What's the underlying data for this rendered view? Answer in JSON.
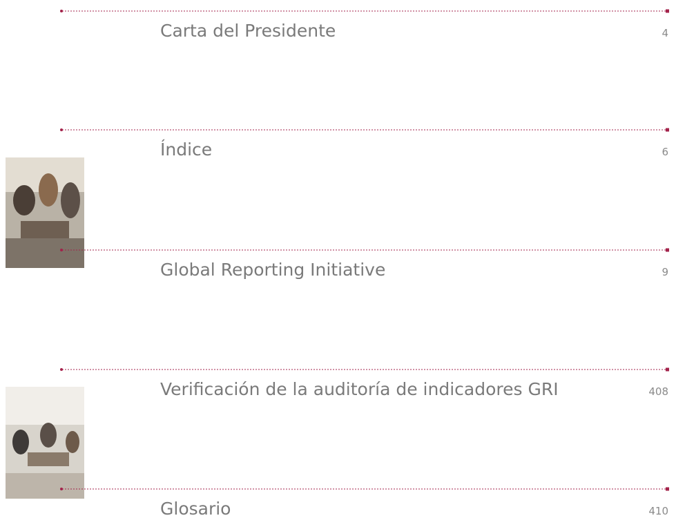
{
  "toc": {
    "entries": [
      {
        "title": "Carta del Presidente",
        "page": "4"
      },
      {
        "title": "Índice",
        "page": "6"
      },
      {
        "title": "Global Reporting Initiative",
        "page": "9"
      },
      {
        "title": "Verificación de la auditoría de indicadores GRI",
        "page": "408"
      },
      {
        "title": "Glosario",
        "page": "410"
      }
    ]
  }
}
